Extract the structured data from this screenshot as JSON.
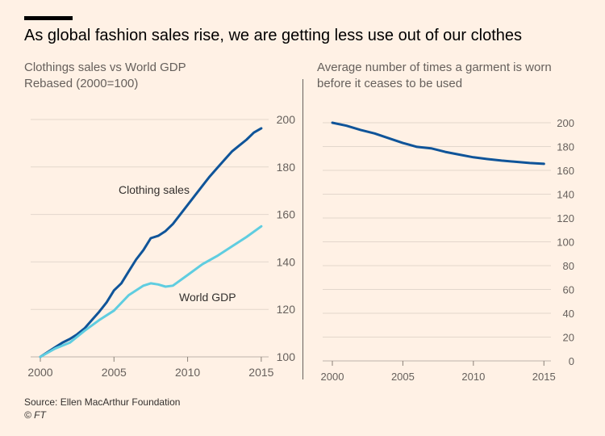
{
  "header": {
    "title": "As global fashion sales rise, we are getting less use out of our clothes"
  },
  "footer": {
    "source": "Source: Ellen MacArthur Foundation",
    "copyright": "© FT"
  },
  "colors": {
    "background": "#fff1e5",
    "clothing_sales": "#0f5499",
    "world_gdp": "#5fcde0",
    "garment_use": "#0f5499",
    "grid": "#e3d7cc",
    "axis_text": "#66605c"
  },
  "chart_data": [
    {
      "type": "line",
      "title_lines": [
        "Clothings sales vs World GDP",
        "Rebased (2000=100)"
      ],
      "xlabel": "",
      "ylabel": "",
      "xlim": [
        2000,
        2015.5
      ],
      "ylim": [
        100,
        200
      ],
      "x_ticks": [
        2000,
        2005,
        2010,
        2015
      ],
      "y_ticks": [
        100,
        120,
        140,
        160,
        180,
        200
      ],
      "y_axis_side": "right",
      "grid": "horizontal",
      "legend": "inline labels",
      "series": [
        {
          "name": "Clothing sales",
          "color": "#0f5499",
          "points": [
            [
              2000,
              100
            ],
            [
              2000.5,
              102
            ],
            [
              2001,
              104
            ],
            [
              2001.5,
              106
            ],
            [
              2002,
              107.5
            ],
            [
              2002.5,
              109.5
            ],
            [
              2003,
              112
            ],
            [
              2003.5,
              115.5
            ],
            [
              2004,
              119
            ],
            [
              2004.5,
              123
            ],
            [
              2005,
              128
            ],
            [
              2005.5,
              131
            ],
            [
              2006,
              136
            ],
            [
              2006.5,
              141
            ],
            [
              2007,
              145
            ],
            [
              2007.5,
              150
            ],
            [
              2008,
              151
            ],
            [
              2008.5,
              153
            ],
            [
              2009,
              156
            ],
            [
              2009.5,
              160
            ],
            [
              2010,
              164
            ],
            [
              2010.5,
              168
            ],
            [
              2011,
              172
            ],
            [
              2011.5,
              176
            ],
            [
              2012,
              179.5
            ],
            [
              2012.5,
              183
            ],
            [
              2013,
              186.5
            ],
            [
              2013.5,
              189
            ],
            [
              2014,
              191.5
            ],
            [
              2014.5,
              194.5
            ],
            [
              2015,
              196.3
            ]
          ]
        },
        {
          "name": "World GDP",
          "color": "#5fcde0",
          "points": [
            [
              2000,
              100
            ],
            [
              2001,
              103.5
            ],
            [
              2002,
              106
            ],
            [
              2003,
              111
            ],
            [
              2004,
              115.5
            ],
            [
              2005,
              119.5
            ],
            [
              2006,
              126
            ],
            [
              2007,
              130
            ],
            [
              2007.5,
              131
            ],
            [
              2008,
              130.5
            ],
            [
              2008.5,
              129.6
            ],
            [
              2009,
              130
            ],
            [
              2010,
              134.5
            ],
            [
              2011,
              139
            ],
            [
              2012,
              142.5
            ],
            [
              2013,
              146.5
            ],
            [
              2014,
              150.5
            ],
            [
              2015,
              155
            ]
          ]
        }
      ],
      "labels": [
        "Clothing sales",
        "World GDP"
      ]
    },
    {
      "type": "line",
      "title_lines": [
        "Average number of times a garment is worn",
        "before it ceases to be used"
      ],
      "xlabel": "",
      "ylabel": "",
      "xlim": [
        2000,
        2015.5
      ],
      "ylim": [
        0,
        200
      ],
      "x_ticks": [
        2000,
        2005,
        2010,
        2015
      ],
      "y_ticks": [
        0,
        20,
        40,
        60,
        80,
        100,
        120,
        140,
        160,
        180,
        200
      ],
      "y_axis_side": "right",
      "grid": "horizontal",
      "series": [
        {
          "color": "#0f5499",
          "points": [
            [
              2000,
              200
            ],
            [
              2001,
              197.5
            ],
            [
              2002,
              194
            ],
            [
              2003,
              191
            ],
            [
              2004,
              187
            ],
            [
              2005,
              183
            ],
            [
              2006,
              179.7
            ],
            [
              2007,
              178.5
            ],
            [
              2008,
              175.5
            ],
            [
              2009,
              173.2
            ],
            [
              2010,
              171
            ],
            [
              2011,
              169.5
            ],
            [
              2012,
              168.2
            ],
            [
              2013,
              167.2
            ],
            [
              2014,
              166.2
            ],
            [
              2015,
              165.5
            ]
          ]
        }
      ]
    }
  ]
}
